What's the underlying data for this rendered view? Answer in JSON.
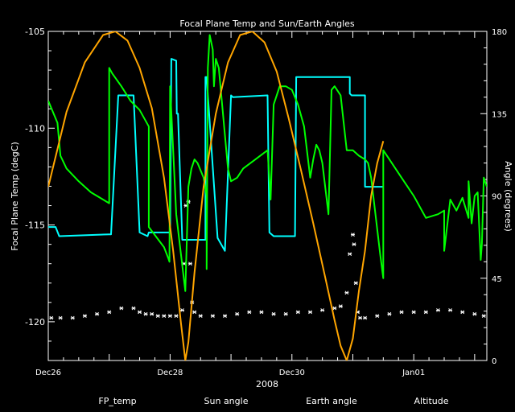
{
  "chart_data": {
    "type": "line",
    "title": "Focal Plane Temp and Sun/Earth Angles",
    "xlabel": "2008",
    "x_tick_labels": [
      "Dec26",
      "Dec28",
      "Dec30",
      "Jan01"
    ],
    "x_unit": "days since Dec26 00:00",
    "xlim": [
      0,
      7.2
    ],
    "ylabel_left": "Focal Plane Temp (degC)",
    "ylabel_right": "Angle (degrees)",
    "ylim_left": [
      -122,
      -105
    ],
    "ylim_right": [
      0,
      180
    ],
    "yticks_left": [
      -105,
      -110,
      -115,
      -120
    ],
    "yticks_right": [
      0,
      45,
      90,
      135,
      180
    ],
    "grid": false,
    "legend_position": "bottom",
    "series": [
      {
        "name": "FP_temp",
        "axis": "left",
        "color": "#ffffff",
        "style": "markers",
        "x": [
          0.05,
          0.2,
          0.4,
          0.6,
          0.8,
          1.0,
          1.2,
          1.4,
          1.5,
          1.6,
          1.7,
          1.8,
          1.9,
          2.0,
          2.1,
          2.2,
          2.23,
          2.26,
          2.3,
          2.33,
          2.36,
          2.4,
          2.5,
          2.7,
          2.9,
          3.1,
          3.3,
          3.5,
          3.7,
          3.9,
          4.1,
          4.3,
          4.5,
          4.7,
          4.8,
          4.9,
          4.95,
          5.0,
          5.02,
          5.05,
          5.08,
          5.12,
          5.2,
          5.4,
          5.6,
          5.8,
          6.0,
          6.2,
          6.4,
          6.6,
          6.8,
          7.0,
          7.15
        ],
        "y": [
          -119.8,
          -119.8,
          -119.8,
          -119.7,
          -119.6,
          -119.5,
          -119.3,
          -119.3,
          -119.5,
          -119.6,
          -119.6,
          -119.7,
          -119.7,
          -119.7,
          -119.7,
          -119.4,
          -117.0,
          -114.0,
          -113.8,
          -117.0,
          -119.0,
          -119.5,
          -119.7,
          -119.7,
          -119.7,
          -119.6,
          -119.5,
          -119.5,
          -119.6,
          -119.6,
          -119.5,
          -119.5,
          -119.4,
          -119.3,
          -119.2,
          -118.5,
          -116.5,
          -115.5,
          -116.0,
          -118.0,
          -119.5,
          -119.8,
          -119.8,
          -119.7,
          -119.6,
          -119.5,
          -119.5,
          -119.5,
          -119.4,
          -119.4,
          -119.5,
          -119.6,
          -119.7
        ]
      },
      {
        "name": "Sun angle",
        "axis": "right",
        "color": "#00ffff",
        "style": "line",
        "x": [
          0.0,
          0.12,
          0.18,
          1.0,
          1.03,
          1.15,
          1.4,
          1.5,
          1.63,
          1.63,
          1.65,
          1.98,
          2.0,
          2.01,
          2.02,
          2.1,
          2.11,
          2.13,
          2.2,
          2.3,
          2.4,
          2.58,
          2.58,
          2.6,
          2.78,
          2.78,
          2.9,
          3.0,
          3.0,
          3.03,
          3.6,
          3.63,
          3.7,
          3.8,
          4.05,
          4.07,
          4.6,
          4.95,
          4.95,
          4.98,
          5.2,
          5.2,
          5.35,
          5.35,
          5.5
        ],
        "y": [
          73,
          73,
          68,
          69,
          69,
          145,
          145,
          70,
          68,
          68,
          70,
          70,
          70,
          110,
          165,
          164,
          135,
          135,
          66,
          66,
          66,
          66,
          155,
          155,
          67,
          67,
          60,
          145,
          145,
          144,
          145,
          70,
          68,
          68,
          68,
          155,
          155,
          155,
          146,
          145,
          145,
          95,
          95,
          95,
          95
        ]
      },
      {
        "name": "Earth angle",
        "axis": "right",
        "color": "#00ff00",
        "style": "line",
        "x": [
          0.0,
          0.15,
          0.2,
          0.3,
          0.5,
          0.7,
          0.9,
          1.0,
          1.0,
          1.05,
          1.2,
          1.35,
          1.5,
          1.65,
          1.65,
          1.9,
          1.97,
          1.99,
          2.0,
          2.1,
          2.25,
          2.3,
          2.35,
          2.4,
          2.45,
          2.55,
          2.6,
          2.6,
          2.62,
          2.65,
          2.7,
          2.72,
          2.75,
          2.8,
          2.95,
          3.0,
          3.1,
          3.2,
          3.4,
          3.6,
          3.65,
          3.7,
          3.75,
          3.8,
          3.9,
          4.0,
          4.1,
          4.2,
          4.3,
          4.35,
          4.4,
          4.45,
          4.5,
          4.6,
          4.65,
          4.7,
          4.8,
          4.9,
          5.0,
          5.1,
          5.2,
          5.25,
          5.3,
          5.45,
          5.5,
          5.5,
          5.6,
          5.8,
          6.0,
          6.05,
          6.2,
          6.4,
          6.5,
          6.5,
          6.6,
          6.7,
          6.8,
          6.9,
          6.9,
          6.95,
          7.0,
          7.05,
          7.1,
          7.12,
          7.15,
          7.2
        ],
        "y": [
          142,
          130,
          112,
          105,
          98,
          92,
          88,
          86,
          160,
          157,
          150,
          142,
          137,
          128,
          73,
          62,
          56,
          54,
          150,
          80,
          38,
          95,
          105,
          110,
          108,
          100,
          90,
          50,
          160,
          178,
          170,
          150,
          165,
          160,
          105,
          98,
          100,
          105,
          110,
          115,
          88,
          140,
          145,
          150,
          150,
          148,
          140,
          128,
          100,
          110,
          118,
          115,
          108,
          80,
          148,
          150,
          145,
          115,
          115,
          112,
          110,
          108,
          100,
          58,
          45,
          115,
          110,
          100,
          90,
          87,
          78,
          80,
          82,
          60,
          88,
          82,
          89,
          78,
          98,
          75,
          90,
          92,
          55,
          64,
          100,
          95
        ]
      },
      {
        "name": "Altitude",
        "axis": "right",
        "color": "#ffa500",
        "style": "line",
        "x": [
          0.0,
          0.3,
          0.6,
          0.9,
          1.1,
          1.3,
          1.5,
          1.7,
          1.9,
          2.05,
          2.18,
          2.25,
          2.3,
          2.4,
          2.55,
          2.75,
          2.95,
          3.15,
          3.35,
          3.55,
          3.75,
          3.95,
          4.15,
          4.35,
          4.55,
          4.7,
          4.8,
          4.9,
          5.0,
          5.1,
          5.2,
          5.3,
          5.4,
          5.5
        ],
        "y": [
          95,
          136,
          163,
          178,
          180,
          175,
          160,
          138,
          100,
          60,
          20,
          0,
          10,
          48,
          95,
          135,
          163,
          178,
          180,
          174,
          158,
          132,
          104,
          75,
          45,
          22,
          8,
          0,
          12,
          38,
          60,
          90,
          108,
          120
        ]
      }
    ]
  },
  "legend": [
    {
      "label": "FP_temp",
      "color": "#ffffff"
    },
    {
      "label": "Sun angle",
      "color": "#00ffff"
    },
    {
      "label": "Earth angle",
      "color": "#00ff00"
    },
    {
      "label": "Altitude",
      "color": "#ffa500"
    }
  ]
}
